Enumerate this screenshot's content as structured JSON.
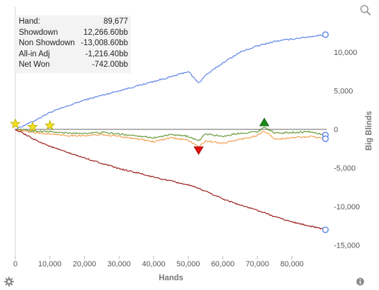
{
  "stats": [
    {
      "label": "Hand:",
      "value": "89,677"
    },
    {
      "label": "Showdown",
      "value": "12,266.60bb"
    },
    {
      "label": "Non Showdown",
      "value": "-13,008.60bb"
    },
    {
      "label": "All-in Adj",
      "value": "-1,216.40bb"
    },
    {
      "label": "Net Won",
      "value": "-742.00bb"
    }
  ],
  "chart_data": {
    "type": "line",
    "xlabel": "Hands",
    "ylabel": "Big Blinds",
    "xlim": [
      0,
      89677
    ],
    "ylim": [
      -15500,
      12500
    ],
    "x_ticks": [
      0,
      10000,
      20000,
      30000,
      40000,
      50000,
      60000,
      70000,
      80000
    ],
    "x_tick_labels": [
      "0",
      "10,000",
      "20,000",
      "30,000",
      "40,000",
      "50,000",
      "60,000",
      "70,000",
      "80,000"
    ],
    "y_ticks": [
      10000,
      5000,
      0,
      -5000,
      -10000,
      -15000
    ],
    "y_tick_labels": [
      "10,000",
      "5,000",
      "0",
      "-5,000",
      "-10,000",
      "-15,000"
    ],
    "y_axis_position": "right",
    "grid": false,
    "series": [
      {
        "color": "#5b82e6",
        "x": [
          0,
          5000,
          10000,
          15000,
          20000,
          25000,
          30000,
          35000,
          40000,
          45000,
          50000,
          53000,
          55000,
          60000,
          65000,
          70000,
          75000,
          80000,
          85000,
          89677
        ],
        "y": [
          0,
          1000,
          2200,
          3000,
          3800,
          4400,
          5000,
          5600,
          6200,
          6800,
          7500,
          6000,
          7000,
          8600,
          10000,
          10800,
          11400,
          11700,
          12000,
          12266.6
        ]
      },
      {
        "color": "#6a9a3a",
        "x": [
          0,
          5000,
          10000,
          15000,
          20000,
          25000,
          30000,
          35000,
          40000,
          45000,
          50000,
          53000,
          55000,
          60000,
          65000,
          70000,
          72000,
          75000,
          80000,
          85000,
          89677
        ],
        "y": [
          0,
          -200,
          -300,
          -500,
          -500,
          -400,
          -600,
          -800,
          -1100,
          -700,
          -900,
          -1500,
          -600,
          -900,
          -500,
          -300,
          300,
          -500,
          -400,
          -300,
          -742
        ]
      },
      {
        "color": "#f2a050",
        "x": [
          0,
          5000,
          10000,
          15000,
          20000,
          25000,
          30000,
          35000,
          40000,
          45000,
          50000,
          53000,
          55000,
          60000,
          65000,
          70000,
          72000,
          75000,
          80000,
          85000,
          89677
        ],
        "y": [
          0,
          -400,
          -600,
          -800,
          -800,
          -700,
          -900,
          -1200,
          -1600,
          -1100,
          -1400,
          -2300,
          -1500,
          -1800,
          -1300,
          -800,
          -200,
          -1300,
          -1100,
          -900,
          -1216.4
        ]
      },
      {
        "color": "#9b1c1c",
        "x": [
          0,
          5000,
          10000,
          15000,
          20000,
          25000,
          30000,
          35000,
          40000,
          45000,
          50000,
          55000,
          60000,
          65000,
          70000,
          75000,
          80000,
          85000,
          89677
        ],
        "y": [
          0,
          -1200,
          -2200,
          -3000,
          -3700,
          -4400,
          -5100,
          -5600,
          -6200,
          -6700,
          -7200,
          -8000,
          -9000,
          -9800,
          -10500,
          -11300,
          -12000,
          -12500,
          -13008.6
        ]
      }
    ],
    "markers": [
      {
        "symbol": "star",
        "color": "#f0e020",
        "x": 0,
        "y": 700
      },
      {
        "symbol": "star",
        "color": "#f0e020",
        "x": 5000,
        "y": 300
      },
      {
        "symbol": "star",
        "color": "#f0e020",
        "x": 10000,
        "y": 500
      },
      {
        "symbol": "triangle-up",
        "color": "#1a8a1a",
        "x": 72000,
        "y": 900
      },
      {
        "symbol": "triangle-down",
        "color": "#e01010",
        "x": 53000,
        "y": -2700
      }
    ]
  },
  "icons": {
    "zoom": "zoom-icon",
    "settings": "gear-icon",
    "info": "info-icon"
  }
}
